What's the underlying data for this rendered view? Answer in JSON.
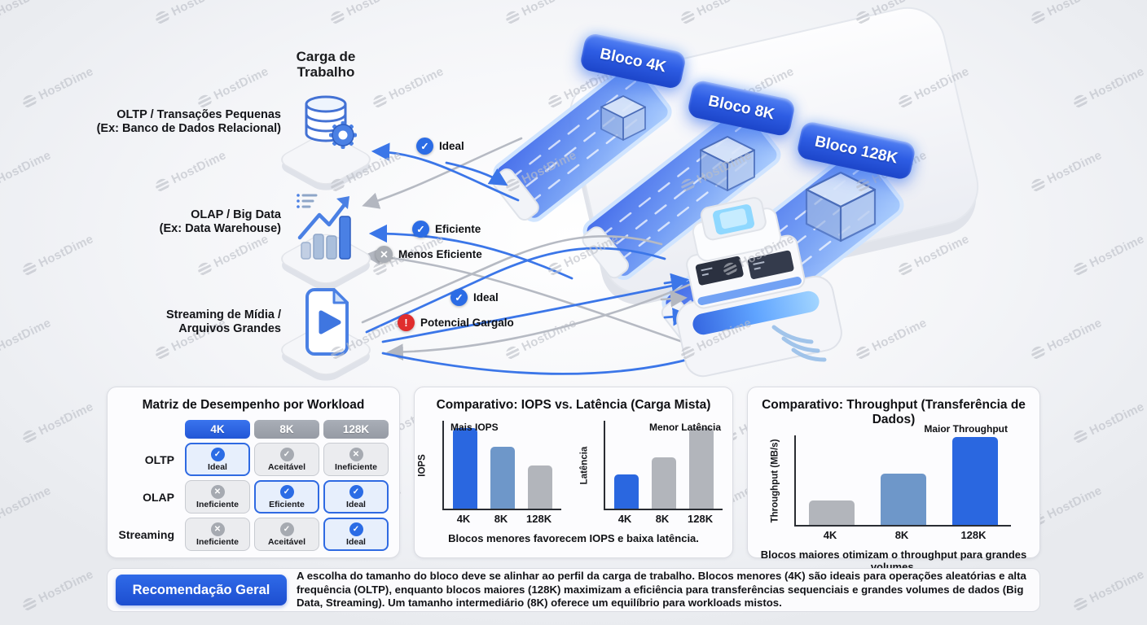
{
  "watermark": {
    "text": "HostDime",
    "logo_icon": "hostdime-logo-icon",
    "color": "#bcbfc7"
  },
  "diagram": {
    "title_lines": [
      "Carga de",
      "Trabalho"
    ],
    "workloads": [
      {
        "line1": "OLTP / Transações Pequenas",
        "line2": "(Ex: Banco de Dados Relacional)",
        "icon": "database-gear-icon"
      },
      {
        "line1": "OLAP / Big Data",
        "line2": "(Ex: Data Warehouse)",
        "icon": "bar-chart-growth-icon"
      },
      {
        "line1": "Streaming de Mídia /",
        "line2": "Arquivos Grandes",
        "icon": "media-file-play-icon"
      }
    ],
    "blocks": [
      {
        "label": "Bloco 4K"
      },
      {
        "label": "Bloco 8K"
      },
      {
        "label": "Bloco 128K"
      }
    ],
    "connections": [
      {
        "label": "Ideal",
        "icon": "check",
        "color": "#2b6ce5"
      },
      {
        "label": "Eficiente",
        "icon": "check",
        "color": "#2b6ce5"
      },
      {
        "label": "Menos Eficiente",
        "icon": "x",
        "color": "#a9adb4"
      },
      {
        "label": "Ideal",
        "icon": "check",
        "color": "#2b6ce5"
      },
      {
        "label": "Potencial Gargalo",
        "icon": "alert",
        "color": "#e02d2d"
      }
    ]
  },
  "matrix": {
    "title": "Matriz de Desempenho por Workload",
    "columns": [
      "4K",
      "8K",
      "128K"
    ],
    "rows": [
      {
        "label": "OLTP",
        "cells": [
          {
            "label": "Ideal",
            "icon": "check",
            "tone": "blue"
          },
          {
            "label": "Aceitável",
            "icon": "check",
            "tone": "gray"
          },
          {
            "label": "Ineficiente",
            "icon": "x",
            "tone": "gray"
          }
        ]
      },
      {
        "label": "OLAP",
        "cells": [
          {
            "label": "Ineficiente",
            "icon": "x",
            "tone": "gray"
          },
          {
            "label": "Eficiente",
            "icon": "check",
            "tone": "blue"
          },
          {
            "label": "Ideal",
            "icon": "check",
            "tone": "blue"
          }
        ]
      },
      {
        "label": "Streaming",
        "cells": [
          {
            "label": "Ineficiente",
            "icon": "x",
            "tone": "gray"
          },
          {
            "label": "Aceitável",
            "icon": "check",
            "tone": "gray"
          },
          {
            "label": "Ideal",
            "icon": "check",
            "tone": "blue"
          }
        ]
      }
    ]
  },
  "chart_data": [
    {
      "type": "bar",
      "title": "Comparativo: IOPS vs. Latência (Carga Mista)",
      "categories": [
        "4K",
        "8K",
        "128K"
      ],
      "series": [
        {
          "name": "IOPS",
          "ylabel": "IOPS",
          "annotation": "Mais IOPS",
          "values": [
            95,
            73,
            51
          ],
          "colors": [
            "#2a67e0",
            "#6e97c9",
            "#b2b5bb"
          ]
        },
        {
          "name": "Latência",
          "ylabel": "Latência",
          "annotation": "Menor Latência",
          "values": [
            40,
            61,
            95
          ],
          "colors": [
            "#2a67e0",
            "#b2b5bb",
            "#b2b5bb"
          ]
        }
      ],
      "ylim": [
        0,
        100
      ],
      "grid": false,
      "caption": "Blocos menores favorecem IOPS e baixa latência."
    },
    {
      "type": "bar",
      "title": "Comparativo: Throughput (Transferência de Dados)",
      "categories": [
        "4K",
        "8K",
        "128K"
      ],
      "series": [
        {
          "name": "Throughput",
          "ylabel": "Throughput (MB/s)",
          "annotation": "Maior Throughput",
          "values": [
            28,
            58,
            100
          ],
          "colors": [
            "#b2b5bb",
            "#6e97c9",
            "#2a67e0"
          ]
        }
      ],
      "ylim": [
        0,
        100
      ],
      "grid": false,
      "caption": "Blocos maiores otimizam o throughput para grandes volumes."
    }
  ],
  "recommendation": {
    "button_label": "Recomendação Geral",
    "text": "A escolha do tamanho do bloco deve se alinhar ao perfil da carga de trabalho. Blocos menores (4K) são ideais para operações aleatórias e alta frequência (OLTP), enquanto blocos maiores (128K) maximizam a eficiência para transferências sequenciais e grandes volumes de dados (Big Data, Streaming). Um tamanho intermediário (8K) oferece um equilíbrio para workloads mistos."
  }
}
